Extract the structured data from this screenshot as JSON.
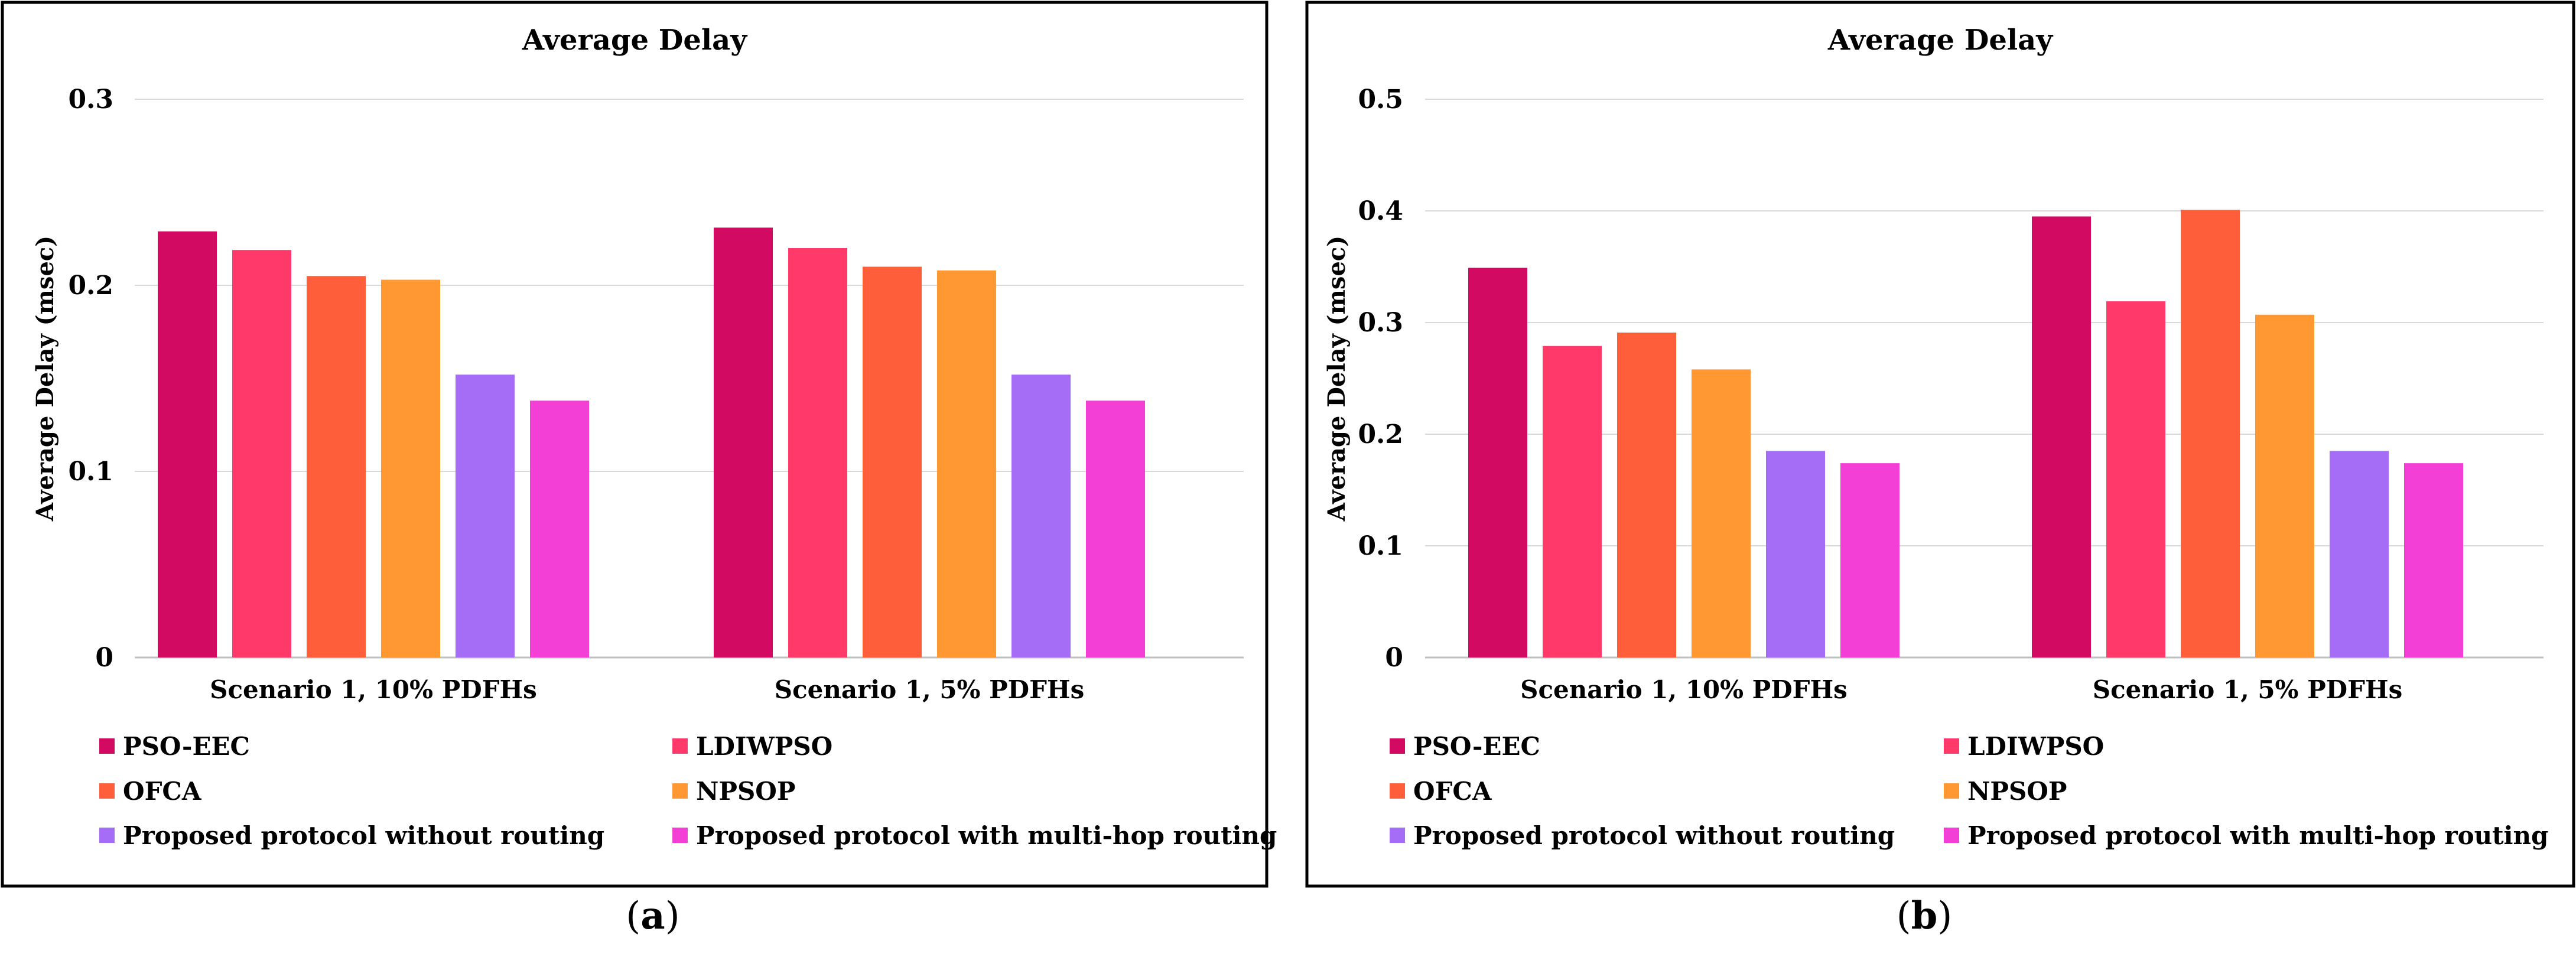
{
  "chart_data": [
    {
      "panel_label": "a",
      "type": "bar",
      "title": "Average Delay",
      "ylabel": "Average Delay (msec)",
      "ylim": [
        0,
        0.3
      ],
      "yticks": [
        0,
        0.1,
        0.2,
        0.3
      ],
      "ytick_labels": [
        "0",
        "0.1",
        "0.2",
        "0.3"
      ],
      "grid": true,
      "legend_placement": "bottom",
      "categories": [
        "Scenario 1, 10% PDFHs",
        "Scenario 1, 5% PDFHs"
      ],
      "series": [
        {
          "name": "PSO-EEC",
          "color": "#d20a61",
          "values": [
            0.229,
            0.231
          ]
        },
        {
          "name": "LDIWPSO",
          "color": "#ff3a6a",
          "values": [
            0.219,
            0.22
          ]
        },
        {
          "name": "OFCA",
          "color": "#ff5e3a",
          "values": [
            0.205,
            0.21
          ]
        },
        {
          "name": "NPSOP",
          "color": "#ff9733",
          "values": [
            0.203,
            0.208
          ]
        },
        {
          "name": "Proposed protocol without routing",
          "color": "#a56cf5",
          "values": [
            0.152,
            0.152
          ]
        },
        {
          "name": "Proposed protocol with multi-hop routing",
          "color": "#f43fd6",
          "values": [
            0.138,
            0.138
          ]
        }
      ]
    },
    {
      "panel_label": "b",
      "type": "bar",
      "title": "Average Delay",
      "ylabel": "Average Delay (msec)",
      "ylim": [
        0,
        0.5
      ],
      "yticks": [
        0,
        0.1,
        0.2,
        0.3,
        0.4,
        0.5
      ],
      "ytick_labels": [
        "0",
        "0.1",
        "0.2",
        "0.3",
        "0.4",
        "0.5"
      ],
      "grid": true,
      "legend_placement": "bottom",
      "categories": [
        "Scenario 1, 10% PDFHs",
        "Scenario 1, 5% PDFHs"
      ],
      "series": [
        {
          "name": "PSO-EEC",
          "color": "#d20a61",
          "values": [
            0.349,
            0.395
          ]
        },
        {
          "name": "LDIWPSO",
          "color": "#ff3a6a",
          "values": [
            0.279,
            0.319
          ]
        },
        {
          "name": "OFCA",
          "color": "#ff5e3a",
          "values": [
            0.291,
            0.401
          ]
        },
        {
          "name": "NPSOP",
          "color": "#ff9733",
          "values": [
            0.258,
            0.307
          ]
        },
        {
          "name": "Proposed protocol without routing",
          "color": "#a56cf5",
          "values": [
            0.185,
            0.185
          ]
        },
        {
          "name": "Proposed protocol with multi-hop routing",
          "color": "#f43fd6",
          "values": [
            0.174,
            0.174
          ]
        }
      ]
    }
  ]
}
